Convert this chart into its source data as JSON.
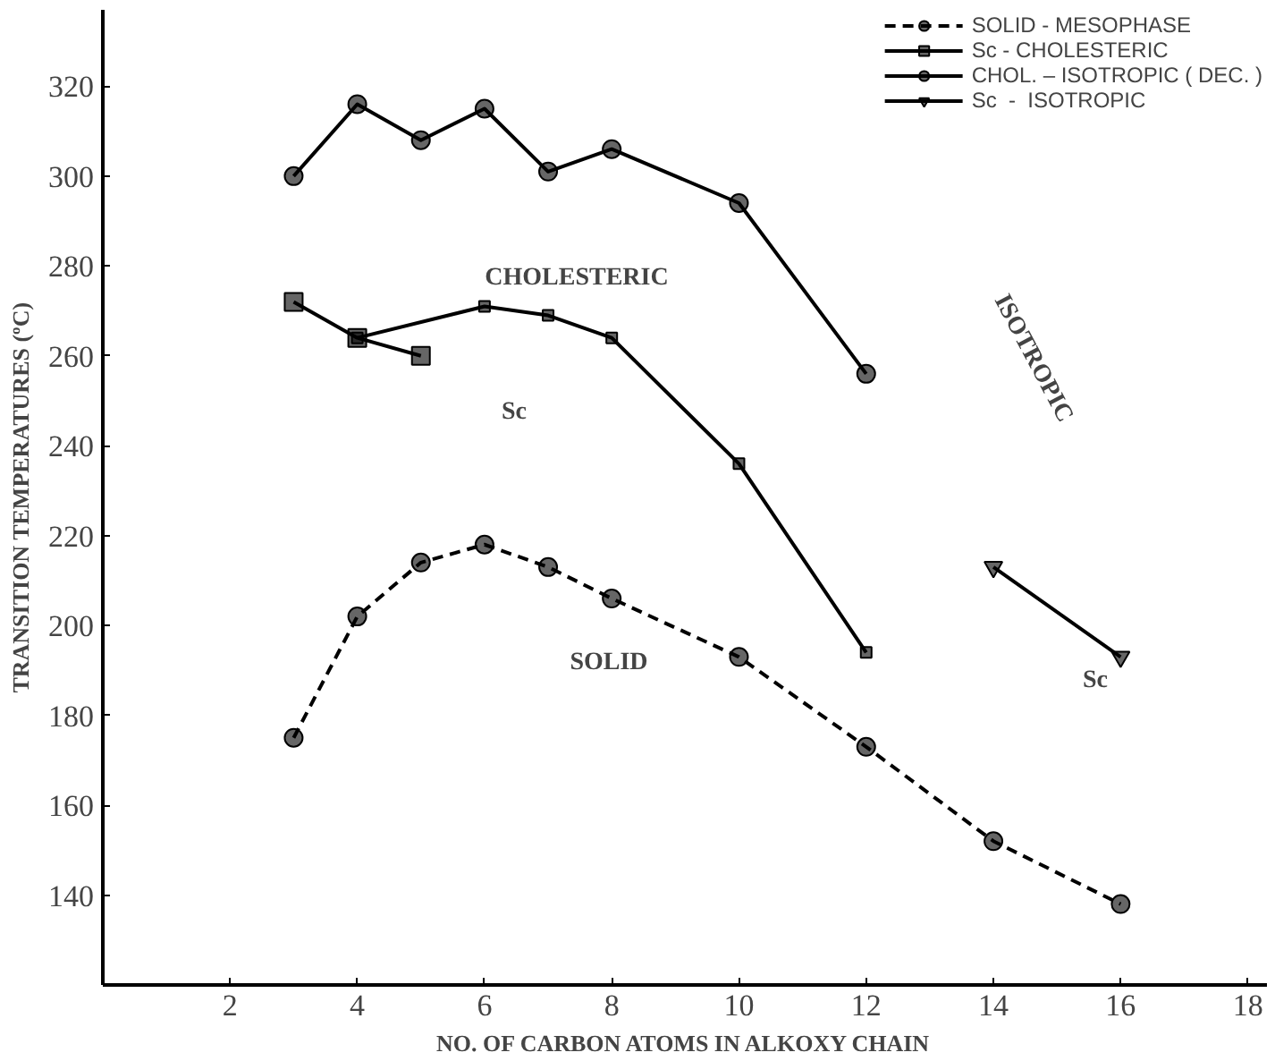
{
  "chart_data": {
    "type": "line",
    "xlabel": "NO. OF CARBON ATOMS IN ALKOXY CHAIN",
    "ylabel": "TRANSITION TEMPERATURES (ºC)",
    "xlim": [
      0,
      18.3
    ],
    "ylim": [
      120,
      337
    ],
    "xticks": [
      2,
      4,
      6,
      8,
      10,
      12,
      14,
      16,
      18
    ],
    "yticks": [
      140,
      160,
      180,
      200,
      220,
      240,
      260,
      280,
      300,
      320
    ],
    "grid": false,
    "legend": "top right",
    "series": [
      {
        "name": "SOLID - MESOPHASE",
        "color": "#000000",
        "marker": "circle",
        "line_style": "dashed",
        "x": [
          3,
          4,
          5,
          6,
          7,
          8,
          10,
          12,
          14,
          16
        ],
        "values": [
          175,
          202,
          214,
          218,
          213,
          206,
          193,
          173,
          152,
          138
        ]
      },
      {
        "name": "Sc - CHOLESTERIC",
        "color": "#000000",
        "marker": "square",
        "line_style": "solid",
        "x": [
          3,
          4,
          5
        ],
        "values": [
          272,
          264,
          260
        ]
      },
      {
        "color": "#000000",
        "marker": "square",
        "line_style": "solid",
        "x": [
          4,
          6,
          7,
          8,
          10,
          12
        ],
        "values": [
          264,
          271,
          269,
          264,
          236,
          194
        ]
      },
      {
        "name": "CHOL. – ISOTROPIC ( DEC. )",
        "color": "#000000",
        "marker": "circle",
        "line_style": "solid",
        "x": [
          3,
          4,
          5,
          6,
          7,
          8,
          10,
          12
        ],
        "values": [
          300,
          316,
          308,
          315,
          301,
          306,
          294,
          256
        ]
      },
      {
        "name": "Sc  -  ISOTROPIC",
        "color": "#000000",
        "marker": "triangle",
        "line_style": "solid",
        "x": [
          14,
          16
        ],
        "values": [
          213,
          193
        ]
      }
    ],
    "annotations": [
      "CHOLESTERIC",
      "ISOTROPIC",
      "Sc",
      "Sc",
      "SOLID"
    ]
  }
}
